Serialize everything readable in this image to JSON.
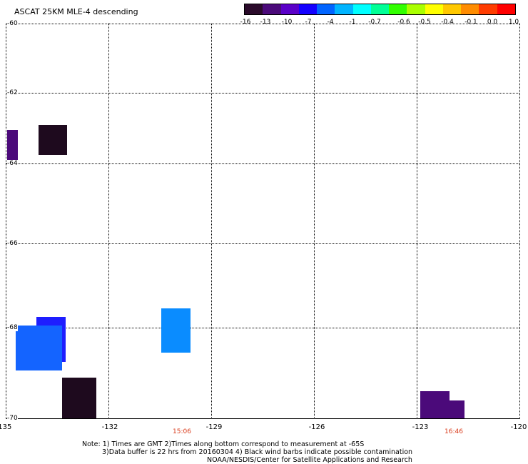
{
  "title": "ASCAT 25KM MLE-4 descending",
  "colorbar": {
    "colors": [
      "#2a0a2a",
      "#4b0a7a",
      "#5a00c8",
      "#1400ff",
      "#0064ff",
      "#00b4ff",
      "#00ffff",
      "#00ff96",
      "#32ff00",
      "#aaff00",
      "#ffff00",
      "#ffc800",
      "#ff8c00",
      "#ff3c00",
      "#ff0000"
    ],
    "labels": [
      "-16",
      "-13",
      "-10",
      "-7",
      "-4",
      "-1",
      "-0.7",
      "-0.6",
      "-0.5",
      "-0.4",
      "-0.1",
      "0.0",
      "1.0"
    ]
  },
  "latitudes": [
    "-60",
    "-62",
    "-64",
    "-66",
    "-68",
    "-70"
  ],
  "longitudes": [
    "-135",
    "-132",
    "-129",
    "-126",
    "-123",
    "-120"
  ],
  "times": [
    "15:06",
    "16:46"
  ],
  "cells": [
    {
      "lon": -134.95,
      "lat": -63.05,
      "w": 0.3,
      "h": 0.85,
      "color": "#4b0a7a"
    },
    {
      "lon": -134.05,
      "lat": -62.9,
      "w": 0.85,
      "h": 0.85,
      "color": "#1e0a1e"
    },
    {
      "lon": -130.45,
      "lat": -67.55,
      "w": 0.85,
      "h": 1.0,
      "color": "#0a8cff"
    },
    {
      "lon": -134.1,
      "lat": -67.75,
      "w": 0.85,
      "h": 1.0,
      "color": "#1e1eff"
    },
    {
      "lon": -134.7,
      "lat": -67.95,
      "w": 1.35,
      "h": 1.0,
      "color": "#1464ff"
    },
    {
      "lon": -133.35,
      "lat": -69.1,
      "w": 1.0,
      "h": 1.05,
      "color": "#1e0a1e"
    },
    {
      "lon": -122.9,
      "lat": -69.4,
      "w": 0.85,
      "h": 0.8,
      "color": "#4b0a7a"
    },
    {
      "lon": -122.1,
      "lat": -69.6,
      "w": 0.5,
      "h": 0.6,
      "color": "#4b0a7a"
    }
  ],
  "note": {
    "line1": "Note: 1) Times are GMT 2)Times along bottom correspond to measurement at -65S",
    "line2": "3)Data buffer is 22 hrs from 20160304 4) Black wind barbs indicate possible contamination",
    "line3": "NOAA/NESDIS/Center for Satellite Applications and Research"
  }
}
